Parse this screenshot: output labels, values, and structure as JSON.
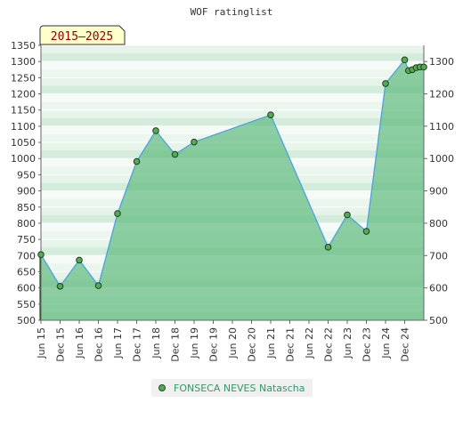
{
  "chart_data": {
    "type": "area",
    "title": "WOF ratinglist",
    "period_label": "2015–2025",
    "xlabel": "",
    "ylabel": "",
    "ylim": [
      500,
      1350
    ],
    "y_ticks_left": [
      500,
      550,
      600,
      650,
      700,
      750,
      800,
      850,
      900,
      950,
      1000,
      1050,
      1100,
      1150,
      1200,
      1250,
      1300,
      1350
    ],
    "y_ticks_right": [
      500,
      600,
      700,
      800,
      900,
      1000,
      1100,
      1200,
      1300
    ],
    "x_range": [
      2015.5,
      2025.5
    ],
    "x_ticks": [
      {
        "label": "Jun 15",
        "x": 2015.5
      },
      {
        "label": "Dec 15",
        "x": 2016.0
      },
      {
        "label": "Jun 16",
        "x": 2016.5
      },
      {
        "label": "Dec 16",
        "x": 2017.0
      },
      {
        "label": "Jun 17",
        "x": 2017.5
      },
      {
        "label": "Dec 17",
        "x": 2018.0
      },
      {
        "label": "Jun 18",
        "x": 2018.5
      },
      {
        "label": "Dec 18",
        "x": 2019.0
      },
      {
        "label": "Jun 19",
        "x": 2019.5
      },
      {
        "label": "Dec 19",
        "x": 2020.0
      },
      {
        "label": "Jun 20",
        "x": 2020.5
      },
      {
        "label": "Dec 20",
        "x": 2021.0
      },
      {
        "label": "Jun 21",
        "x": 2021.5
      },
      {
        "label": "Dec 21",
        "x": 2022.0
      },
      {
        "label": "Jun 22",
        "x": 2022.5
      },
      {
        "label": "Dec 22",
        "x": 2023.0
      },
      {
        "label": "Jun 23",
        "x": 2023.5
      },
      {
        "label": "Dec 23",
        "x": 2024.0
      },
      {
        "label": "Jun 24",
        "x": 2024.5
      },
      {
        "label": "Dec 24",
        "x": 2025.0
      }
    ],
    "grid": true,
    "legend_position": "bottom-center",
    "series": [
      {
        "name": "FONSECA NEVES Natascha",
        "color": "#4aa3df",
        "fill_color": "#5fba7d",
        "marker_color": "#55aa55",
        "points": [
          {
            "x": 2015.5,
            "y": 703
          },
          {
            "x": 2016.0,
            "y": 605
          },
          {
            "x": 2016.5,
            "y": 686
          },
          {
            "x": 2017.0,
            "y": 607
          },
          {
            "x": 2017.5,
            "y": 830
          },
          {
            "x": 2018.0,
            "y": 991
          },
          {
            "x": 2018.5,
            "y": 1086
          },
          {
            "x": 2019.0,
            "y": 1013
          },
          {
            "x": 2019.5,
            "y": 1051
          },
          {
            "x": 2021.5,
            "y": 1135
          },
          {
            "x": 2023.0,
            "y": 726
          },
          {
            "x": 2023.5,
            "y": 826
          },
          {
            "x": 2024.0,
            "y": 775
          },
          {
            "x": 2024.5,
            "y": 1232
          },
          {
            "x": 2025.0,
            "y": 1305
          },
          {
            "x": 2025.1,
            "y": 1272
          },
          {
            "x": 2025.2,
            "y": 1275
          },
          {
            "x": 2025.3,
            "y": 1281
          },
          {
            "x": 2025.4,
            "y": 1283
          },
          {
            "x": 2025.5,
            "y": 1283
          }
        ]
      }
    ]
  }
}
